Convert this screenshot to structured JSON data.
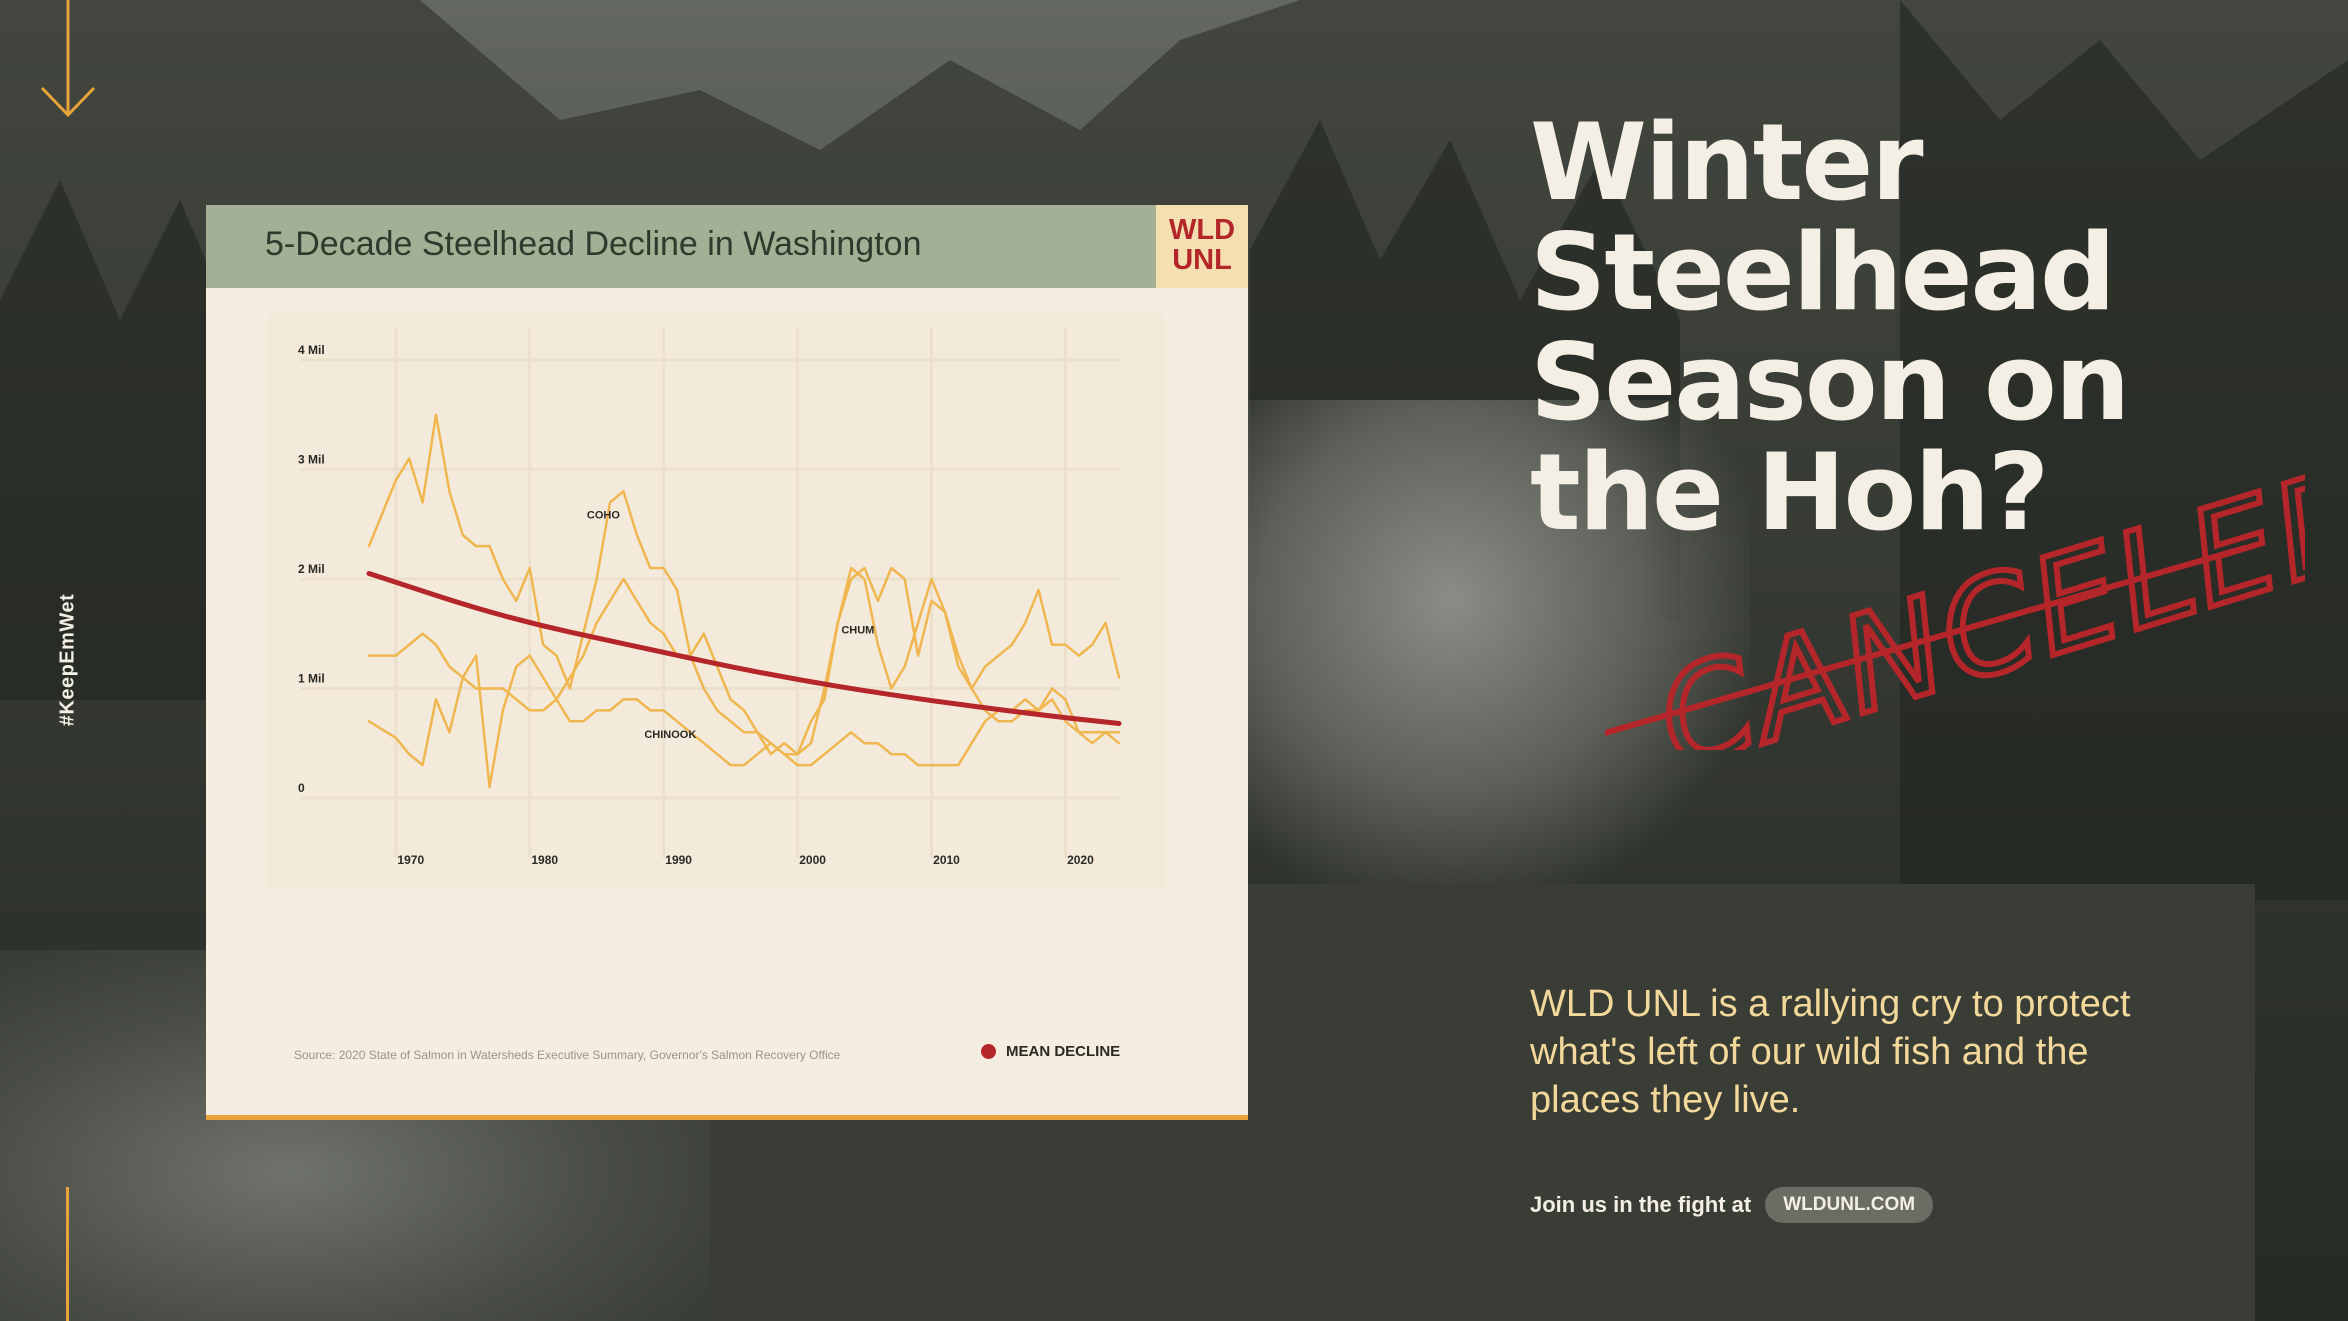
{
  "hashtag": "#KeepEmWet",
  "card": {
    "title": "5-Decade Steelhead Decline in Washington",
    "badge_line1": "WLD",
    "badge_line2": "UNL",
    "source": "Source: 2020 State of Salmon in Watersheds Executive Summary, Governor's Salmon Recovery Office",
    "legend_label": "MEAN DECLINE"
  },
  "headline": {
    "line1": "Winter",
    "line2": "Steelhead",
    "line3": "Season on",
    "line4": "the Hoh?",
    "stamp": "CANCELED."
  },
  "tagline": "WLD UNL is a rallying cry to protect what's left of our wild fish and the places they live.",
  "join_text": "Join us in the fight at",
  "url": "WLDUNL.COM",
  "colors": {
    "accent_orange": "#e8a43a",
    "stamp_red": "#b5262a",
    "header_green": "#a3b095",
    "card_bg": "#f5eddf",
    "tagline_yellow": "#f2d89a"
  },
  "chart_data": {
    "type": "line",
    "ylim": [
      0,
      4.2
    ],
    "xlim": [
      1968,
      2024
    ],
    "yticks": [
      {
        "value": 0,
        "label": "0"
      },
      {
        "value": 1,
        "label": "1 Mil"
      },
      {
        "value": 2,
        "label": "2 Mil"
      },
      {
        "value": 3,
        "label": "3 Mil"
      },
      {
        "value": 4,
        "label": "4 Mil"
      }
    ],
    "xticks": [
      {
        "value": 1970,
        "label": "1970"
      },
      {
        "value": 1980,
        "label": "1980"
      },
      {
        "value": 1990,
        "label": "1990"
      },
      {
        "value": 2000,
        "label": "2000"
      },
      {
        "value": 2010,
        "label": "2010"
      },
      {
        "value": 2020,
        "label": "2020"
      }
    ],
    "grid": true,
    "series": [
      {
        "name": "COHO",
        "color": "#f0b650",
        "label_at": [
          1985.5,
          2.55
        ],
        "x": [
          1968,
          1970,
          1971,
          1972,
          1973,
          1974,
          1975,
          1976,
          1977,
          1978,
          1979,
          1980,
          1981,
          1982,
          1983,
          1984,
          1985,
          1986,
          1987,
          1988,
          1989,
          1990,
          1991,
          1992,
          1993,
          1994,
          1995,
          1996,
          1997,
          1998,
          1999,
          2000,
          2001,
          2002,
          2003,
          2004,
          2005,
          2006,
          2007,
          2008,
          2009,
          2010,
          2011,
          2012,
          2013,
          2014,
          2015,
          2016,
          2017,
          2018,
          2019,
          2020,
          2021,
          2022,
          2023,
          2024
        ],
        "y": [
          2.3,
          2.9,
          3.1,
          2.7,
          3.5,
          2.8,
          2.4,
          2.3,
          2.3,
          2.0,
          1.8,
          2.1,
          1.4,
          1.3,
          1.0,
          1.5,
          2.0,
          2.7,
          2.8,
          2.4,
          2.1,
          2.1,
          1.9,
          1.3,
          1.5,
          1.2,
          0.9,
          0.8,
          0.6,
          0.5,
          0.4,
          0.4,
          0.7,
          0.9,
          1.6,
          2.0,
          2.1,
          1.8,
          2.1,
          2.0,
          1.3,
          1.8,
          1.7,
          1.3,
          1.0,
          1.2,
          1.3,
          1.4,
          1.6,
          1.9,
          1.4,
          1.4,
          1.3,
          1.4,
          1.6,
          1.1
        ]
      },
      {
        "name": "CHUM",
        "color": "#f0b650",
        "label_at": [
          2004.5,
          1.5
        ],
        "x": [
          1968,
          1970,
          1971,
          1972,
          1973,
          1974,
          1975,
          1976,
          1977,
          1978,
          1979,
          1980,
          1981,
          1982,
          1983,
          1984,
          1985,
          1986,
          1987,
          1988,
          1989,
          1990,
          1991,
          1992,
          1993,
          1994,
          1995,
          1996,
          1997,
          1998,
          1999,
          2000,
          2001,
          2002,
          2003,
          2004,
          2005,
          2006,
          2007,
          2008,
          2009,
          2010,
          2011,
          2012,
          2013,
          2014,
          2015,
          2016,
          2017,
          2018,
          2019,
          2020,
          2021,
          2022,
          2023,
          2024
        ],
        "y": [
          1.3,
          1.3,
          1.4,
          1.5,
          1.4,
          1.2,
          1.1,
          1.0,
          1.0,
          1.0,
          0.9,
          0.8,
          0.8,
          0.9,
          1.1,
          1.3,
          1.6,
          1.8,
          2.0,
          1.8,
          1.6,
          1.5,
          1.3,
          1.3,
          1.0,
          0.8,
          0.7,
          0.6,
          0.6,
          0.4,
          0.5,
          0.4,
          0.5,
          1.0,
          1.6,
          2.1,
          2.0,
          1.4,
          1.0,
          1.2,
          1.6,
          2.0,
          1.7,
          1.2,
          1.0,
          0.8,
          0.7,
          0.7,
          0.8,
          0.8,
          1.0,
          0.9,
          0.6,
          0.5,
          0.6,
          0.5
        ]
      },
      {
        "name": "CHINOOK",
        "color": "#f0b650",
        "label_at": [
          1990.5,
          0.55
        ],
        "x": [
          1968,
          1970,
          1971,
          1972,
          1973,
          1974,
          1975,
          1976,
          1977,
          1978,
          1979,
          1980,
          1981,
          1982,
          1983,
          1984,
          1985,
          1986,
          1987,
          1988,
          1989,
          1990,
          1991,
          1992,
          1993,
          1994,
          1995,
          1996,
          1997,
          1998,
          1999,
          2000,
          2001,
          2002,
          2003,
          2004,
          2005,
          2006,
          2007,
          2008,
          2009,
          2010,
          2011,
          2012,
          2013,
          2014,
          2015,
          2016,
          2017,
          2018,
          2019,
          2020,
          2021,
          2022,
          2023,
          2024
        ],
        "y": [
          0.7,
          0.55,
          0.4,
          0.3,
          0.9,
          0.6,
          1.1,
          1.3,
          0.1,
          0.8,
          1.2,
          1.3,
          1.1,
          0.9,
          0.7,
          0.7,
          0.8,
          0.8,
          0.9,
          0.9,
          0.8,
          0.8,
          0.7,
          0.6,
          0.5,
          0.4,
          0.3,
          0.3,
          0.4,
          0.5,
          0.4,
          0.3,
          0.3,
          0.4,
          0.5,
          0.6,
          0.5,
          0.5,
          0.4,
          0.4,
          0.3,
          0.3,
          0.3,
          0.3,
          0.5,
          0.7,
          0.8,
          0.8,
          0.9,
          0.8,
          0.9,
          0.7,
          0.6,
          0.6,
          0.6,
          0.6
        ]
      },
      {
        "name": "MEAN DECLINE",
        "color": "#b5262a",
        "x": [
          1968,
          1978,
          1988,
          1998,
          2008,
          2018,
          2024
        ],
        "y": [
          2.05,
          1.65,
          1.38,
          1.12,
          0.92,
          0.76,
          0.68
        ]
      }
    ]
  }
}
